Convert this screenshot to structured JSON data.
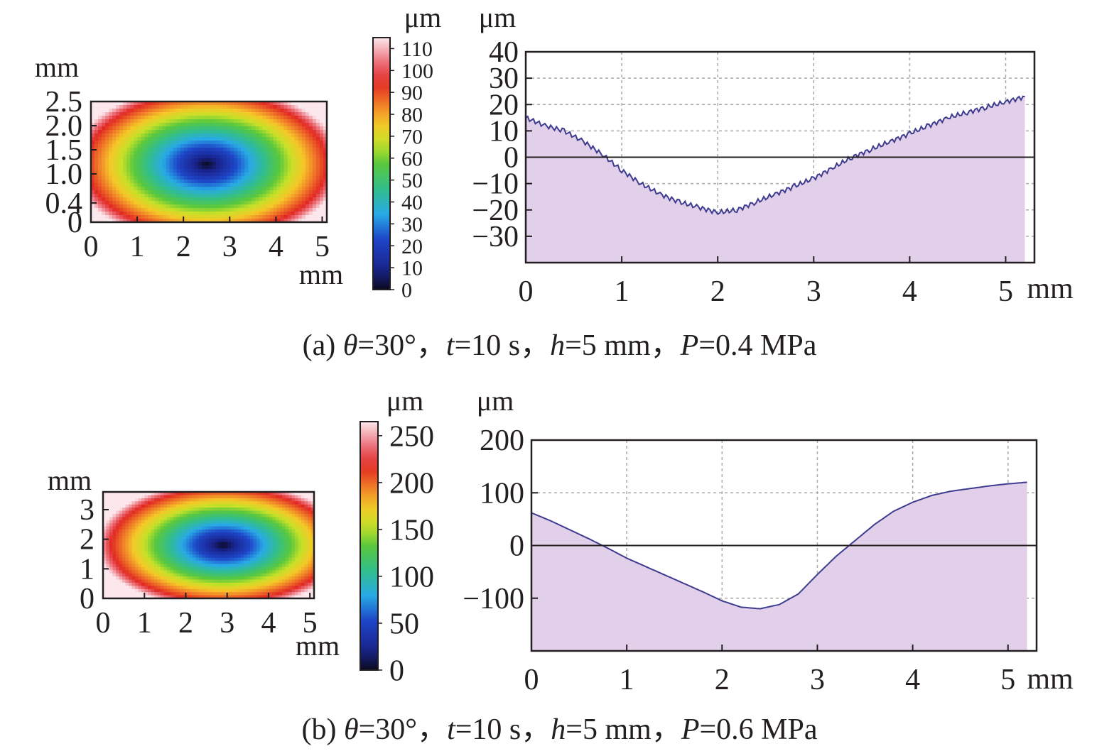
{
  "chart_data": [
    {
      "id": "a",
      "caption": {
        "prefix": "(a) ",
        "theta_symbol": "θ",
        "theta_value": "=30°，",
        "t_symbol": "t",
        "t_value": "=10 s，",
        "h_symbol": "h",
        "h_value": "=5 mm，",
        "p_symbol": "P",
        "p_value": "=0.4 MPa"
      },
      "heatmap": {
        "type": "heatmap",
        "y_unit": "mm",
        "x_unit": "mm",
        "x_ticks": [
          "0",
          "1",
          "2",
          "3",
          "4",
          "5"
        ],
        "y_ticks": [
          "0",
          "0.4",
          "1.0",
          "1.5",
          "2.0",
          "2.5"
        ],
        "xlim": [
          0,
          5.1
        ],
        "ylim": [
          0,
          2.5
        ],
        "center": [
          2.5,
          1.2
        ],
        "radius_x_mm": 2.6,
        "radius_y_mm": 1.45,
        "min_value": 0,
        "max_value": 115
      },
      "colorbar": {
        "unit": "μm",
        "ticks": [
          "0",
          "10",
          "20",
          "30",
          "40",
          "50",
          "60",
          "70",
          "80",
          "90",
          "100",
          "110"
        ],
        "range": [
          0,
          115
        ]
      },
      "profile": {
        "type": "area",
        "y_unit": "μm",
        "x_unit": "mm",
        "x_ticks": [
          "0",
          "1",
          "2",
          "3",
          "4",
          "5"
        ],
        "y_ticks": [
          "40",
          "30",
          "20",
          "10",
          "0",
          "−10",
          "−20",
          "−30"
        ],
        "xlim": [
          0,
          5.3
        ],
        "ylim": [
          -40,
          40
        ],
        "grid": true,
        "x": [
          0,
          0.2,
          0.4,
          0.6,
          0.8,
          1.0,
          1.2,
          1.4,
          1.6,
          1.8,
          2.0,
          2.2,
          2.4,
          2.6,
          2.8,
          3.0,
          3.2,
          3.4,
          3.6,
          3.8,
          4.0,
          4.2,
          4.4,
          4.6,
          4.8,
          5.0,
          5.2
        ],
        "y": [
          15,
          12,
          10,
          6,
          1,
          -5,
          -10,
          -14,
          -17,
          -19,
          -21,
          -20,
          -17,
          -14,
          -11,
          -8,
          -4,
          0,
          3,
          6,
          9,
          12,
          15,
          17,
          19,
          21,
          23
        ],
        "color": "#3e3c8f",
        "fill": "#e2cfea"
      }
    },
    {
      "id": "b",
      "caption": {
        "prefix": "(b) ",
        "theta_symbol": "θ",
        "theta_value": "=30°，",
        "t_symbol": "t",
        "t_value": "=10 s，",
        "h_symbol": "h",
        "h_value": "=5 mm，",
        "p_symbol": "P",
        "p_value": "=0.6 MPa"
      },
      "heatmap": {
        "type": "heatmap",
        "y_unit": "mm",
        "x_unit": "mm",
        "x_ticks": [
          "0",
          "1",
          "2",
          "3",
          "4",
          "5"
        ],
        "y_ticks": [
          "0",
          "1",
          "2",
          "3"
        ],
        "xlim": [
          0,
          5.1
        ],
        "ylim": [
          0,
          3.6
        ],
        "center": [
          2.9,
          1.8
        ],
        "radius_x_mm": 2.7,
        "radius_y_mm": 1.9,
        "min_value": 0,
        "max_value": 265
      },
      "colorbar": {
        "unit": "μm",
        "ticks": [
          "0",
          "50",
          "100",
          "150",
          "200",
          "250"
        ],
        "range": [
          0,
          265
        ]
      },
      "profile": {
        "type": "area",
        "y_unit": "μm",
        "x_unit": "mm",
        "x_ticks": [
          "0",
          "1",
          "2",
          "3",
          "4",
          "5"
        ],
        "y_ticks": [
          "200",
          "100",
          "0",
          "−100"
        ],
        "xlim": [
          0,
          5.3
        ],
        "ylim": [
          -200,
          200
        ],
        "grid": true,
        "x": [
          0,
          0.2,
          0.4,
          0.6,
          0.8,
          1.0,
          1.2,
          1.4,
          1.6,
          1.8,
          2.0,
          2.2,
          2.4,
          2.6,
          2.8,
          3.0,
          3.2,
          3.4,
          3.6,
          3.8,
          4.0,
          4.2,
          4.4,
          4.6,
          4.8,
          5.0,
          5.2
        ],
        "y": [
          62,
          47,
          30,
          13,
          -5,
          -24,
          -40,
          -56,
          -72,
          -88,
          -105,
          -117,
          -120,
          -112,
          -92,
          -55,
          -20,
          10,
          40,
          65,
          82,
          95,
          103,
          108,
          113,
          117,
          120
        ],
        "color": "#3e3c8f",
        "fill": "#e2cfea"
      }
    }
  ]
}
